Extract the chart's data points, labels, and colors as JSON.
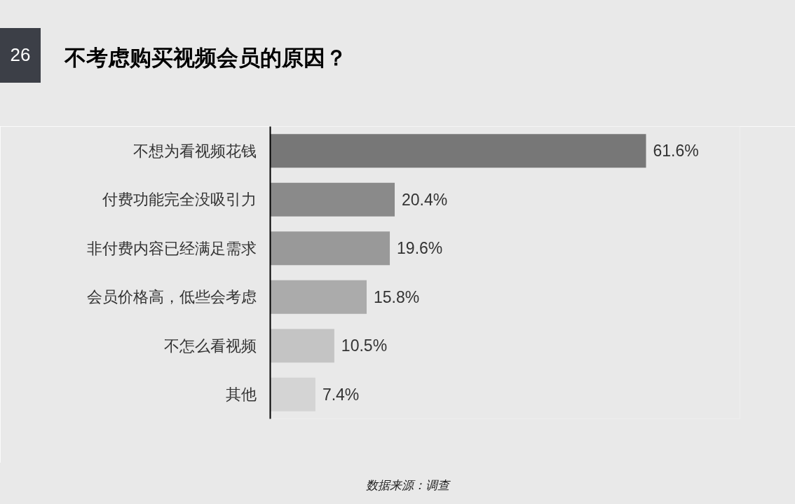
{
  "chart_data": {
    "type": "bar",
    "orientation": "horizontal",
    "title": "不考虑购买视频会员的原因？",
    "categories": [
      "不想为看视频花钱",
      "付费功能完全没吸引力",
      "非付费内容已经满足需求",
      "会员价格高，低些会考虑",
      "不怎么看视频",
      "其他"
    ],
    "values": [
      61.6,
      20.4,
      19.6,
      15.8,
      10.5,
      7.4
    ],
    "colors": [
      "#777777",
      "#8a8a8a",
      "#999999",
      "#ababab",
      "#c4c4c4",
      "#d4d4d4"
    ],
    "value_labels": [
      "61.6%",
      "20.4%",
      "19.6%",
      "15.8%",
      "10.5%",
      "7.4%"
    ],
    "annotations": [
      "26",
      "数据来源：调查"
    ]
  }
}
